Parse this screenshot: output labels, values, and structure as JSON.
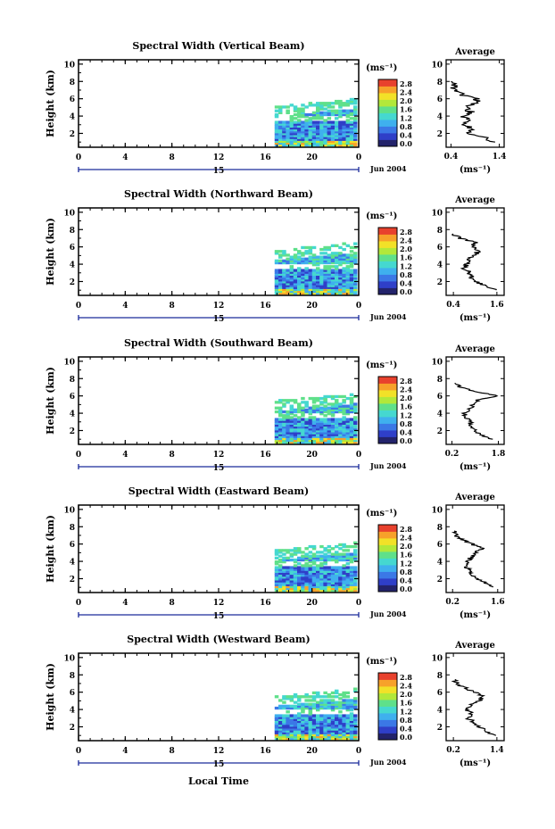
{
  "panel_rows": [
    {
      "title": "Spectral Width (Vertical Beam)",
      "avg_title": "Average"
    },
    {
      "title": "Spectral Width (Northward Beam)",
      "avg_title": "Average"
    },
    {
      "title": "Spectral Width (Southward Beam)",
      "avg_title": "Average"
    },
    {
      "title": "Spectral Width (Eastward Beam)",
      "avg_title": "Average"
    },
    {
      "title": "Spectral Width (Westward Beam)",
      "avg_title": "Average"
    }
  ],
  "main_ylabel": "Height (km)",
  "main_yticks": [
    "2",
    "4",
    "6",
    "8",
    "10"
  ],
  "main_xticks": [
    "0",
    "4",
    "8",
    "12",
    "16",
    "20",
    "0"
  ],
  "date_day": "15",
  "date_label": "Jun 2004",
  "xlabel_bottom": "Local Time",
  "cbar_unit": "(ms⁻¹)",
  "cbar_ticks": [
    "0.0",
    "0.4",
    "0.8",
    "1.2",
    "1.6",
    "2.0",
    "2.4",
    "2.8"
  ],
  "avg_yticks": [
    "2",
    "4",
    "6",
    "8",
    "10"
  ],
  "avg_unit": "(ms⁻¹)",
  "colors": {
    "scale": [
      "#23236b",
      "#2f3fc8",
      "#3b78e6",
      "#3fb0ee",
      "#45d8d0",
      "#5fe08a",
      "#b2e83a",
      "#f2e128",
      "#f7a12a",
      "#e8412d"
    ]
  },
  "chart_data": [
    {
      "type": "heatmap",
      "title": "Spectral Width (Vertical Beam)",
      "xlabel": "",
      "ylabel": "Height (km)",
      "xlim": [
        0,
        24
      ],
      "ylim": [
        0.4,
        10.5
      ],
      "data_start_hour": 16.8,
      "top_km": 5.0,
      "avg_xticks": [
        "0.4",
        "1.4"
      ],
      "avg_xlim": [
        0.3,
        1.5
      ],
      "avg_profile": [
        [
          1.0,
          1.3
        ],
        [
          1.5,
          1.1
        ],
        [
          2.0,
          0.8
        ],
        [
          2.5,
          0.85
        ],
        [
          3.0,
          0.7
        ],
        [
          3.5,
          0.75
        ],
        [
          4.0,
          0.65
        ],
        [
          4.5,
          0.8
        ],
        [
          5.0,
          0.7
        ],
        [
          5.5,
          0.9
        ],
        [
          6.0,
          0.95
        ],
        [
          6.5,
          0.6
        ],
        [
          7.0,
          0.5
        ],
        [
          7.5,
          0.45
        ],
        [
          8.0,
          0.4
        ]
      ]
    },
    {
      "type": "heatmap",
      "title": "Spectral Width (Northward Beam)",
      "xlabel": "",
      "ylabel": "Height (km)",
      "xlim": [
        0,
        24
      ],
      "ylim": [
        0.4,
        10.5
      ],
      "data_start_hour": 16.8,
      "top_km": 5.5,
      "avg_xticks": [
        "0.4",
        "1.6"
      ],
      "avg_xlim": [
        0.2,
        1.8
      ],
      "avg_profile": [
        [
          1.0,
          1.6
        ],
        [
          1.5,
          1.3
        ],
        [
          2.0,
          1.0
        ],
        [
          2.5,
          0.9
        ],
        [
          3.0,
          0.85
        ],
        [
          3.5,
          0.7
        ],
        [
          4.0,
          0.75
        ],
        [
          4.5,
          0.8
        ],
        [
          5.0,
          0.95
        ],
        [
          5.5,
          1.1
        ],
        [
          6.0,
          0.9
        ],
        [
          6.5,
          1.0
        ],
        [
          7.0,
          0.6
        ],
        [
          7.5,
          0.4
        ]
      ]
    },
    {
      "type": "heatmap",
      "title": "Spectral Width (Southward Beam)",
      "xlabel": "",
      "ylabel": "Height (km)",
      "xlim": [
        0,
        24
      ],
      "ylim": [
        0.4,
        10.5
      ],
      "data_start_hour": 16.8,
      "top_km": 5.3,
      "avg_xticks": [
        "0.2",
        "1.8"
      ],
      "avg_xlim": [
        0.0,
        2.0
      ],
      "avg_profile": [
        [
          1.0,
          1.6
        ],
        [
          1.5,
          1.2
        ],
        [
          2.0,
          1.0
        ],
        [
          2.5,
          0.8
        ],
        [
          3.0,
          0.85
        ],
        [
          3.5,
          0.7
        ],
        [
          4.0,
          0.65
        ],
        [
          4.5,
          0.8
        ],
        [
          5.0,
          0.95
        ],
        [
          5.5,
          1.1
        ],
        [
          6.0,
          1.8
        ],
        [
          6.5,
          1.0
        ],
        [
          7.0,
          0.5
        ],
        [
          7.5,
          0.3
        ]
      ]
    },
    {
      "type": "heatmap",
      "title": "Spectral Width (Eastward Beam)",
      "xlabel": "",
      "ylabel": "Height (km)",
      "xlim": [
        0,
        24
      ],
      "ylim": [
        0.4,
        10.5
      ],
      "data_start_hour": 16.8,
      "top_km": 5.2,
      "avg_xticks": [
        "0.2",
        "1.6"
      ],
      "avg_xlim": [
        0.0,
        1.8
      ],
      "avg_profile": [
        [
          1.0,
          1.4
        ],
        [
          1.5,
          1.2
        ],
        [
          2.0,
          1.0
        ],
        [
          2.5,
          0.75
        ],
        [
          3.0,
          0.7
        ],
        [
          3.5,
          0.6
        ],
        [
          4.0,
          0.65
        ],
        [
          4.5,
          0.8
        ],
        [
          5.0,
          0.9
        ],
        [
          5.5,
          1.1
        ],
        [
          6.0,
          0.8
        ],
        [
          6.5,
          0.5
        ],
        [
          7.0,
          0.3
        ],
        [
          7.5,
          0.25
        ]
      ]
    },
    {
      "type": "heatmap",
      "title": "Spectral Width (Westward Beam)",
      "xlabel": "Local Time",
      "ylabel": "Height (km)",
      "xlim": [
        0,
        24
      ],
      "ylim": [
        0.4,
        10.5
      ],
      "data_start_hour": 16.8,
      "top_km": 5.4,
      "avg_xticks": [
        "0.2",
        "1.4"
      ],
      "avg_xlim": [
        0.0,
        1.6
      ],
      "avg_profile": [
        [
          1.0,
          1.3
        ],
        [
          1.5,
          1.1
        ],
        [
          2.0,
          0.9
        ],
        [
          2.5,
          0.8
        ],
        [
          3.0,
          0.6
        ],
        [
          3.5,
          0.7
        ],
        [
          4.0,
          0.55
        ],
        [
          4.5,
          0.7
        ],
        [
          5.0,
          0.9
        ],
        [
          5.5,
          1.0
        ],
        [
          6.0,
          0.8
        ],
        [
          6.5,
          0.5
        ],
        [
          7.0,
          0.3
        ],
        [
          7.5,
          0.25
        ]
      ]
    }
  ]
}
